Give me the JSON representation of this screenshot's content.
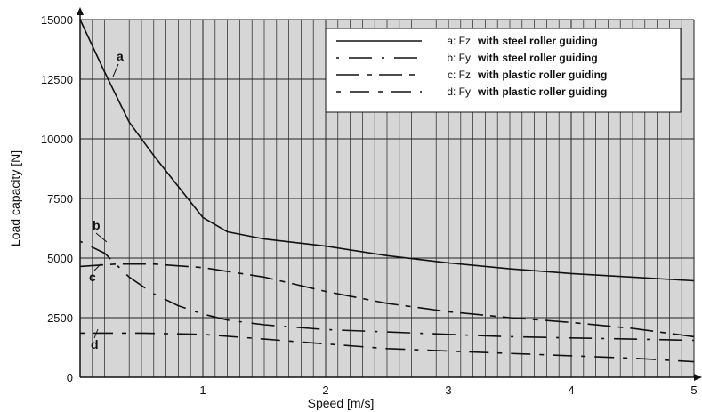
{
  "chart_data": {
    "type": "line",
    "xlabel": "Speed [m/s]",
    "ylabel": "Load capacity [N]",
    "xlim": [
      0,
      5
    ],
    "ylim": [
      0,
      15000
    ],
    "x_ticks": [
      "1",
      "2",
      "3",
      "4",
      "5"
    ],
    "y_ticks": [
      "0",
      "2500",
      "5000",
      "7500",
      "10000",
      "12500",
      "15000"
    ],
    "grid": true,
    "legend_position": "top-right",
    "series": [
      {
        "name": "a: Fz",
        "description": "with steel roller guiding",
        "label": "a",
        "color": "#111111",
        "dash": "solid",
        "points": [
          [
            0,
            15000
          ],
          [
            0.2,
            12800
          ],
          [
            0.4,
            10700
          ],
          [
            0.6,
            9300
          ],
          [
            0.8,
            8000
          ],
          [
            1.0,
            6700
          ],
          [
            1.2,
            6100
          ],
          [
            1.5,
            5800
          ],
          [
            2.0,
            5500
          ],
          [
            2.5,
            5100
          ],
          [
            3.0,
            4800
          ],
          [
            3.5,
            4550
          ],
          [
            4.0,
            4350
          ],
          [
            4.5,
            4200
          ],
          [
            5.0,
            4050
          ]
        ]
      },
      {
        "name": "b: Fy",
        "description": "with steel roller guiding",
        "label": "b",
        "color": "#111111",
        "dash": "dash-dot",
        "points": [
          [
            0,
            5700
          ],
          [
            0.2,
            5200
          ],
          [
            0.4,
            4200
          ],
          [
            0.6,
            3500
          ],
          [
            0.8,
            3000
          ],
          [
            1.0,
            2650
          ],
          [
            1.2,
            2400
          ],
          [
            1.5,
            2200
          ],
          [
            2.0,
            2000
          ],
          [
            2.5,
            1900
          ],
          [
            3.0,
            1800
          ],
          [
            3.5,
            1700
          ],
          [
            4.0,
            1650
          ],
          [
            4.5,
            1600
          ],
          [
            5.0,
            1550
          ]
        ]
      },
      {
        "name": "c: Fz",
        "description": "with plastic roller guiding",
        "label": "c",
        "color": "#111111",
        "dash": "long-short",
        "points": [
          [
            0,
            4650
          ],
          [
            0.3,
            4750
          ],
          [
            0.6,
            4750
          ],
          [
            1.0,
            4600
          ],
          [
            1.5,
            4200
          ],
          [
            2.0,
            3600
          ],
          [
            2.5,
            3100
          ],
          [
            3.0,
            2750
          ],
          [
            3.5,
            2500
          ],
          [
            4.0,
            2300
          ],
          [
            4.5,
            2050
          ],
          [
            5.0,
            1700
          ]
        ]
      },
      {
        "name": "d: Fy",
        "description": "with plastic roller guiding",
        "label": "d",
        "color": "#111111",
        "dash": "short-long",
        "points": [
          [
            0,
            1850
          ],
          [
            0.5,
            1850
          ],
          [
            1.0,
            1800
          ],
          [
            1.5,
            1600
          ],
          [
            2.0,
            1400
          ],
          [
            2.5,
            1200
          ],
          [
            3.0,
            1100
          ],
          [
            3.5,
            1000
          ],
          [
            4.0,
            900
          ],
          [
            4.5,
            800
          ],
          [
            5.0,
            650
          ]
        ]
      }
    ]
  }
}
